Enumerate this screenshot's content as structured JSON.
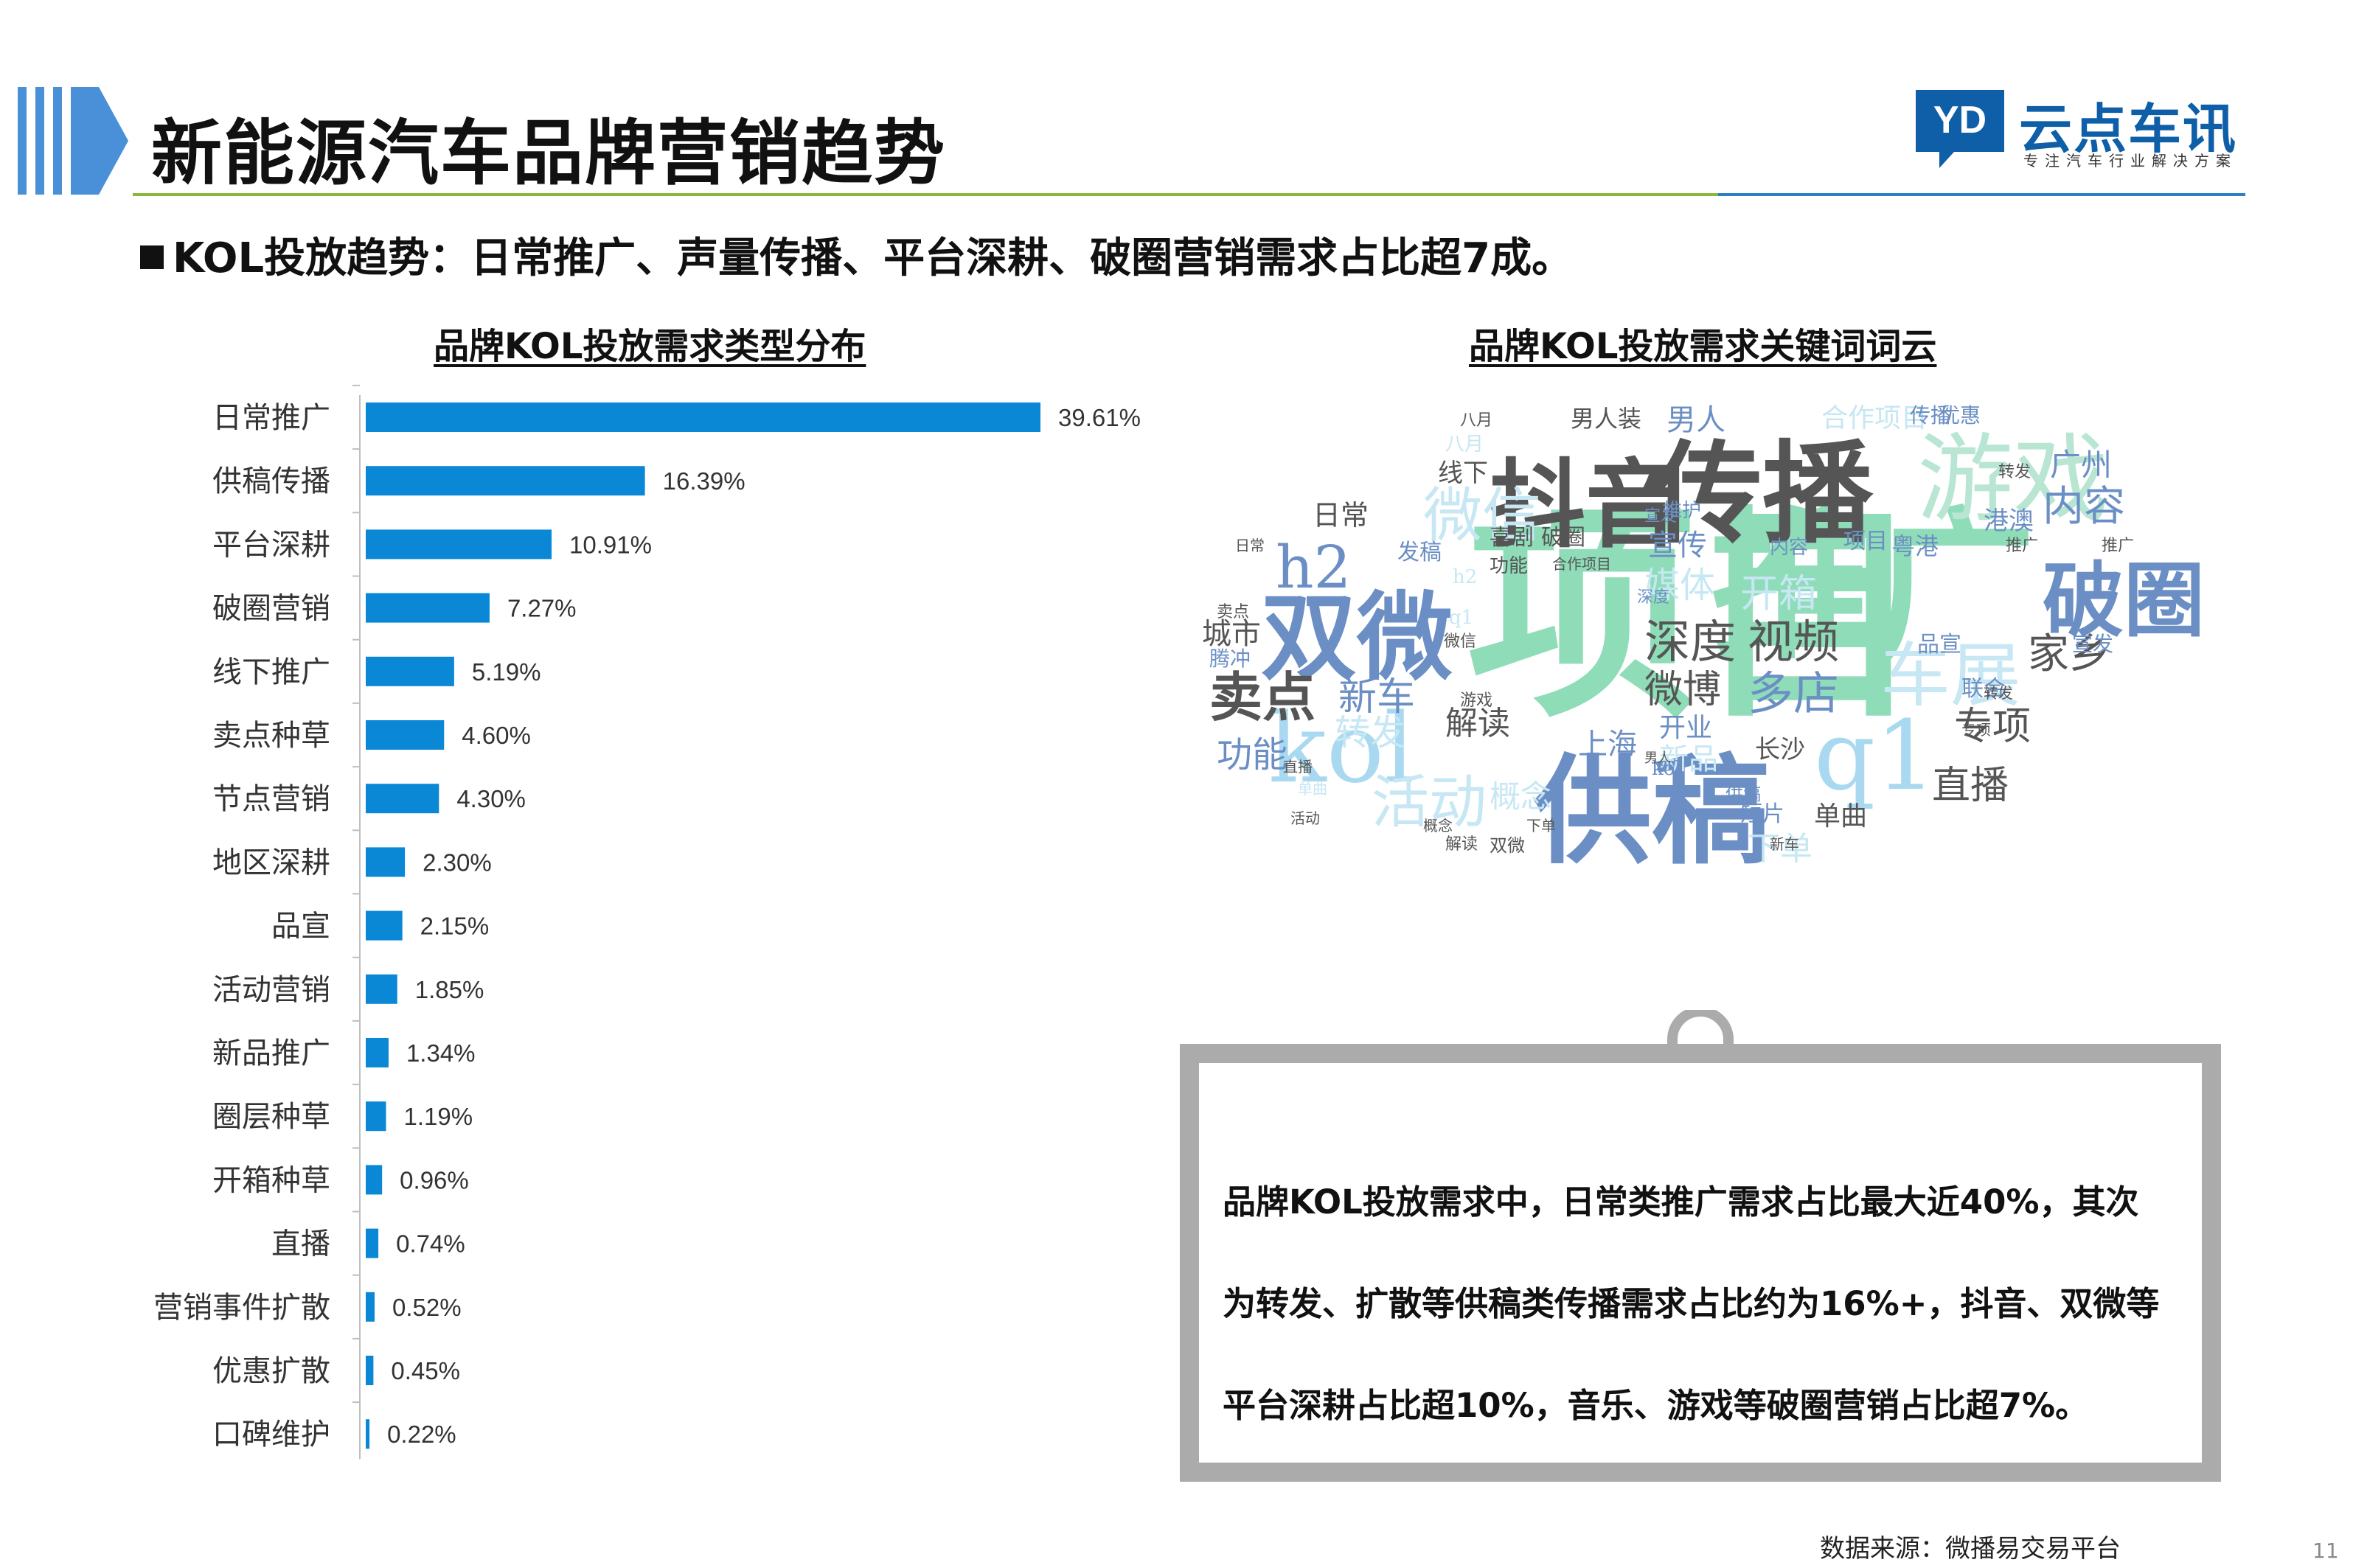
{
  "header": {
    "title": "新能源汽车品牌营销趋势",
    "subtitle": "KOL投放趋势：日常推广、声量传播、平台深耕、破圈营销需求占比超7成。"
  },
  "brand": {
    "logo_mark": "YD",
    "name": "云点车讯",
    "tagline": "专注汽车行业解决方案",
    "color": "#0e5fa8"
  },
  "left_section": {
    "title": "品牌KOL投放需求类型分布"
  },
  "right_section": {
    "title": "品牌KOL投放需求关键词词云"
  },
  "colors": {
    "bar": "#0a88d6",
    "accent_rule": "#8ab83c",
    "title_marker": "#4a90d9"
  },
  "chart_data": {
    "type": "bar",
    "orientation": "horizontal",
    "title": "品牌KOL投放需求类型分布",
    "xlabel": "",
    "ylabel": "",
    "unit": "%",
    "categories": [
      "日常推广",
      "供稿传播",
      "平台深耕",
      "破圈营销",
      "线下推广",
      "卖点种草",
      "节点营销",
      "地区深耕",
      "品宣",
      "活动营销",
      "新品推广",
      "圈层种草",
      "开箱种草",
      "直播",
      "营销事件扩散",
      "优惠扩散",
      "口碑维护"
    ],
    "values": [
      39.61,
      16.39,
      10.91,
      7.27,
      5.19,
      4.6,
      4.3,
      2.3,
      2.15,
      1.85,
      1.34,
      1.19,
      0.96,
      0.74,
      0.52,
      0.45,
      0.22
    ],
    "labels": [
      "39.61%",
      "16.39%",
      "10.91%",
      "7.27%",
      "5.19%",
      "4.60%",
      "4.30%",
      "2.30%",
      "2.15%",
      "1.85%",
      "1.34%",
      "1.19%",
      "0.96%",
      "0.74%",
      "0.52%",
      "0.45%",
      "0.22%"
    ],
    "xlim": [
      0,
      40
    ],
    "grid": false,
    "legend": "none"
  },
  "word_cloud": {
    "words": [
      {
        "text": "项目",
        "color": "#8fdcb8"
      },
      {
        "text": "推广",
        "color": "#8fdcb8"
      },
      {
        "text": "传播",
        "color": "#555555"
      },
      {
        "text": "抖音",
        "color": "#555555"
      },
      {
        "text": "游戏",
        "color": "#b8e6d2"
      },
      {
        "text": "供稿",
        "color": "#6b8fc4"
      },
      {
        "text": "双微",
        "color": "#6b8fc4"
      },
      {
        "text": "破圈",
        "color": "#6b8fc4"
      },
      {
        "text": "kol",
        "color": "#a9d9f0"
      },
      {
        "text": "q1",
        "color": "#a9d9f0"
      },
      {
        "text": "微信",
        "color": "#c6e7f3"
      },
      {
        "text": "h2",
        "color": "#6b8fc4"
      },
      {
        "text": "车展",
        "color": "#c6e7f3"
      },
      {
        "text": "卖点",
        "color": "#555555"
      },
      {
        "text": "视频",
        "color": "#555555"
      },
      {
        "text": "深度",
        "color": "#555555"
      },
      {
        "text": "多店",
        "color": "#6b8fc4"
      },
      {
        "text": "微博",
        "color": "#555555"
      },
      {
        "text": "内容",
        "color": "#6b8fc4"
      },
      {
        "text": "活动",
        "color": "#c6e7f3"
      },
      {
        "text": "家乡",
        "color": "#555555"
      },
      {
        "text": "专项",
        "color": "#555555"
      },
      {
        "text": "直播",
        "color": "#555555"
      },
      {
        "text": "新车",
        "color": "#6b8fc4"
      },
      {
        "text": "转发",
        "color": "#c6e7f3"
      },
      {
        "text": "功能",
        "color": "#6b8fc4"
      },
      {
        "text": "解读",
        "color": "#555555"
      },
      {
        "text": "上海",
        "color": "#6b8fc4"
      },
      {
        "text": "城市",
        "color": "#555555"
      },
      {
        "text": "开箱",
        "color": "#c6e7f3"
      },
      {
        "text": "媒体",
        "color": "#c6e7f3"
      },
      {
        "text": "宣传",
        "color": "#6b8fc4"
      },
      {
        "text": "男人",
        "color": "#6b8fc4"
      },
      {
        "text": "男人装",
        "color": "#555555"
      },
      {
        "text": "日常",
        "color": "#555555"
      },
      {
        "text": "广州",
        "color": "#6b8fc4"
      },
      {
        "text": "港澳",
        "color": "#6b8fc4"
      },
      {
        "text": "粤港",
        "color": "#6b8fc4"
      },
      {
        "text": "线下",
        "color": "#555555"
      },
      {
        "text": "开业",
        "color": "#6b8fc4"
      },
      {
        "text": "长沙",
        "color": "#555555"
      },
      {
        "text": "单曲",
        "color": "#555555"
      },
      {
        "text": "短片",
        "color": "#6b8fc4"
      },
      {
        "text": "下单",
        "color": "#c6e7f3"
      },
      {
        "text": "新品",
        "color": "#c6e7f3"
      },
      {
        "text": "合作项目",
        "color": "#c6e7f3"
      },
      {
        "text": "优惠",
        "color": "#6b8fc4"
      },
      {
        "text": "传播",
        "color": "#6b8fc4"
      },
      {
        "text": "品宣",
        "color": "#6b8fc4"
      },
      {
        "text": "联合",
        "color": "#6b8fc4"
      },
      {
        "text": "宣发",
        "color": "#6b8fc4"
      },
      {
        "text": "喜剧",
        "color": "#555555"
      },
      {
        "text": "破圈",
        "color": "#555555"
      },
      {
        "text": "概念",
        "color": "#c6e7f3"
      },
      {
        "text": "发稿",
        "color": "#6b8fc4"
      },
      {
        "text": "腾冲",
        "color": "#6b8fc4"
      },
      {
        "text": "八月",
        "color": "#c6e7f3"
      },
      {
        "text": "推护",
        "color": "#6b8fc4"
      },
      {
        "text": "内容",
        "color": "#6b8fc4"
      },
      {
        "text": "项目",
        "color": "#6b8fc4"
      },
      {
        "text": "转发",
        "color": "#555555"
      },
      {
        "text": "推广",
        "color": "#555555"
      },
      {
        "text": "宣发",
        "color": "#6b8fc4"
      },
      {
        "text": "深度",
        "color": "#6b8fc4"
      },
      {
        "text": "下单",
        "color": "#555555"
      },
      {
        "text": "卖点",
        "color": "#555555"
      },
      {
        "text": "活动",
        "color": "#555555"
      },
      {
        "text": "直播",
        "color": "#555555"
      },
      {
        "text": "游戏",
        "color": "#555555"
      },
      {
        "text": "双微",
        "color": "#555555"
      },
      {
        "text": "供稿",
        "color": "#6b8fc4"
      },
      {
        "text": "新车",
        "color": "#555555"
      },
      {
        "text": "概念",
        "color": "#555555"
      },
      {
        "text": "解读",
        "color": "#555555"
      },
      {
        "text": "转发",
        "color": "#555555"
      },
      {
        "text": "专项",
        "color": "#555555"
      },
      {
        "text": "日常",
        "color": "#555555"
      },
      {
        "text": "h2",
        "color": "#c6e7f3"
      },
      {
        "text": "q1",
        "color": "#c6e7f3"
      },
      {
        "text": "微信",
        "color": "#555555"
      },
      {
        "text": "kol",
        "color": "#6b8fc4"
      },
      {
        "text": "合作项目",
        "color": "#555555"
      },
      {
        "text": "功能",
        "color": "#555555"
      },
      {
        "text": "八月",
        "color": "#555555"
      },
      {
        "text": "男人",
        "color": "#555555"
      },
      {
        "text": "推广",
        "color": "#555555"
      },
      {
        "text": "单曲",
        "color": "#c6e7f3"
      }
    ]
  },
  "note": {
    "line1": "品牌KOL投放需求中，日常类推广需求占比最大近40%，其次",
    "line2": "为转发、扩散等供稿类传播需求占比约为16%+，抖音、双微等",
    "line3": "平台深耕占比超10%，音乐、游戏等破圈营销占比超7%。"
  },
  "footer": {
    "source": "数据来源：微播易交易平台",
    "page_number": "11"
  }
}
